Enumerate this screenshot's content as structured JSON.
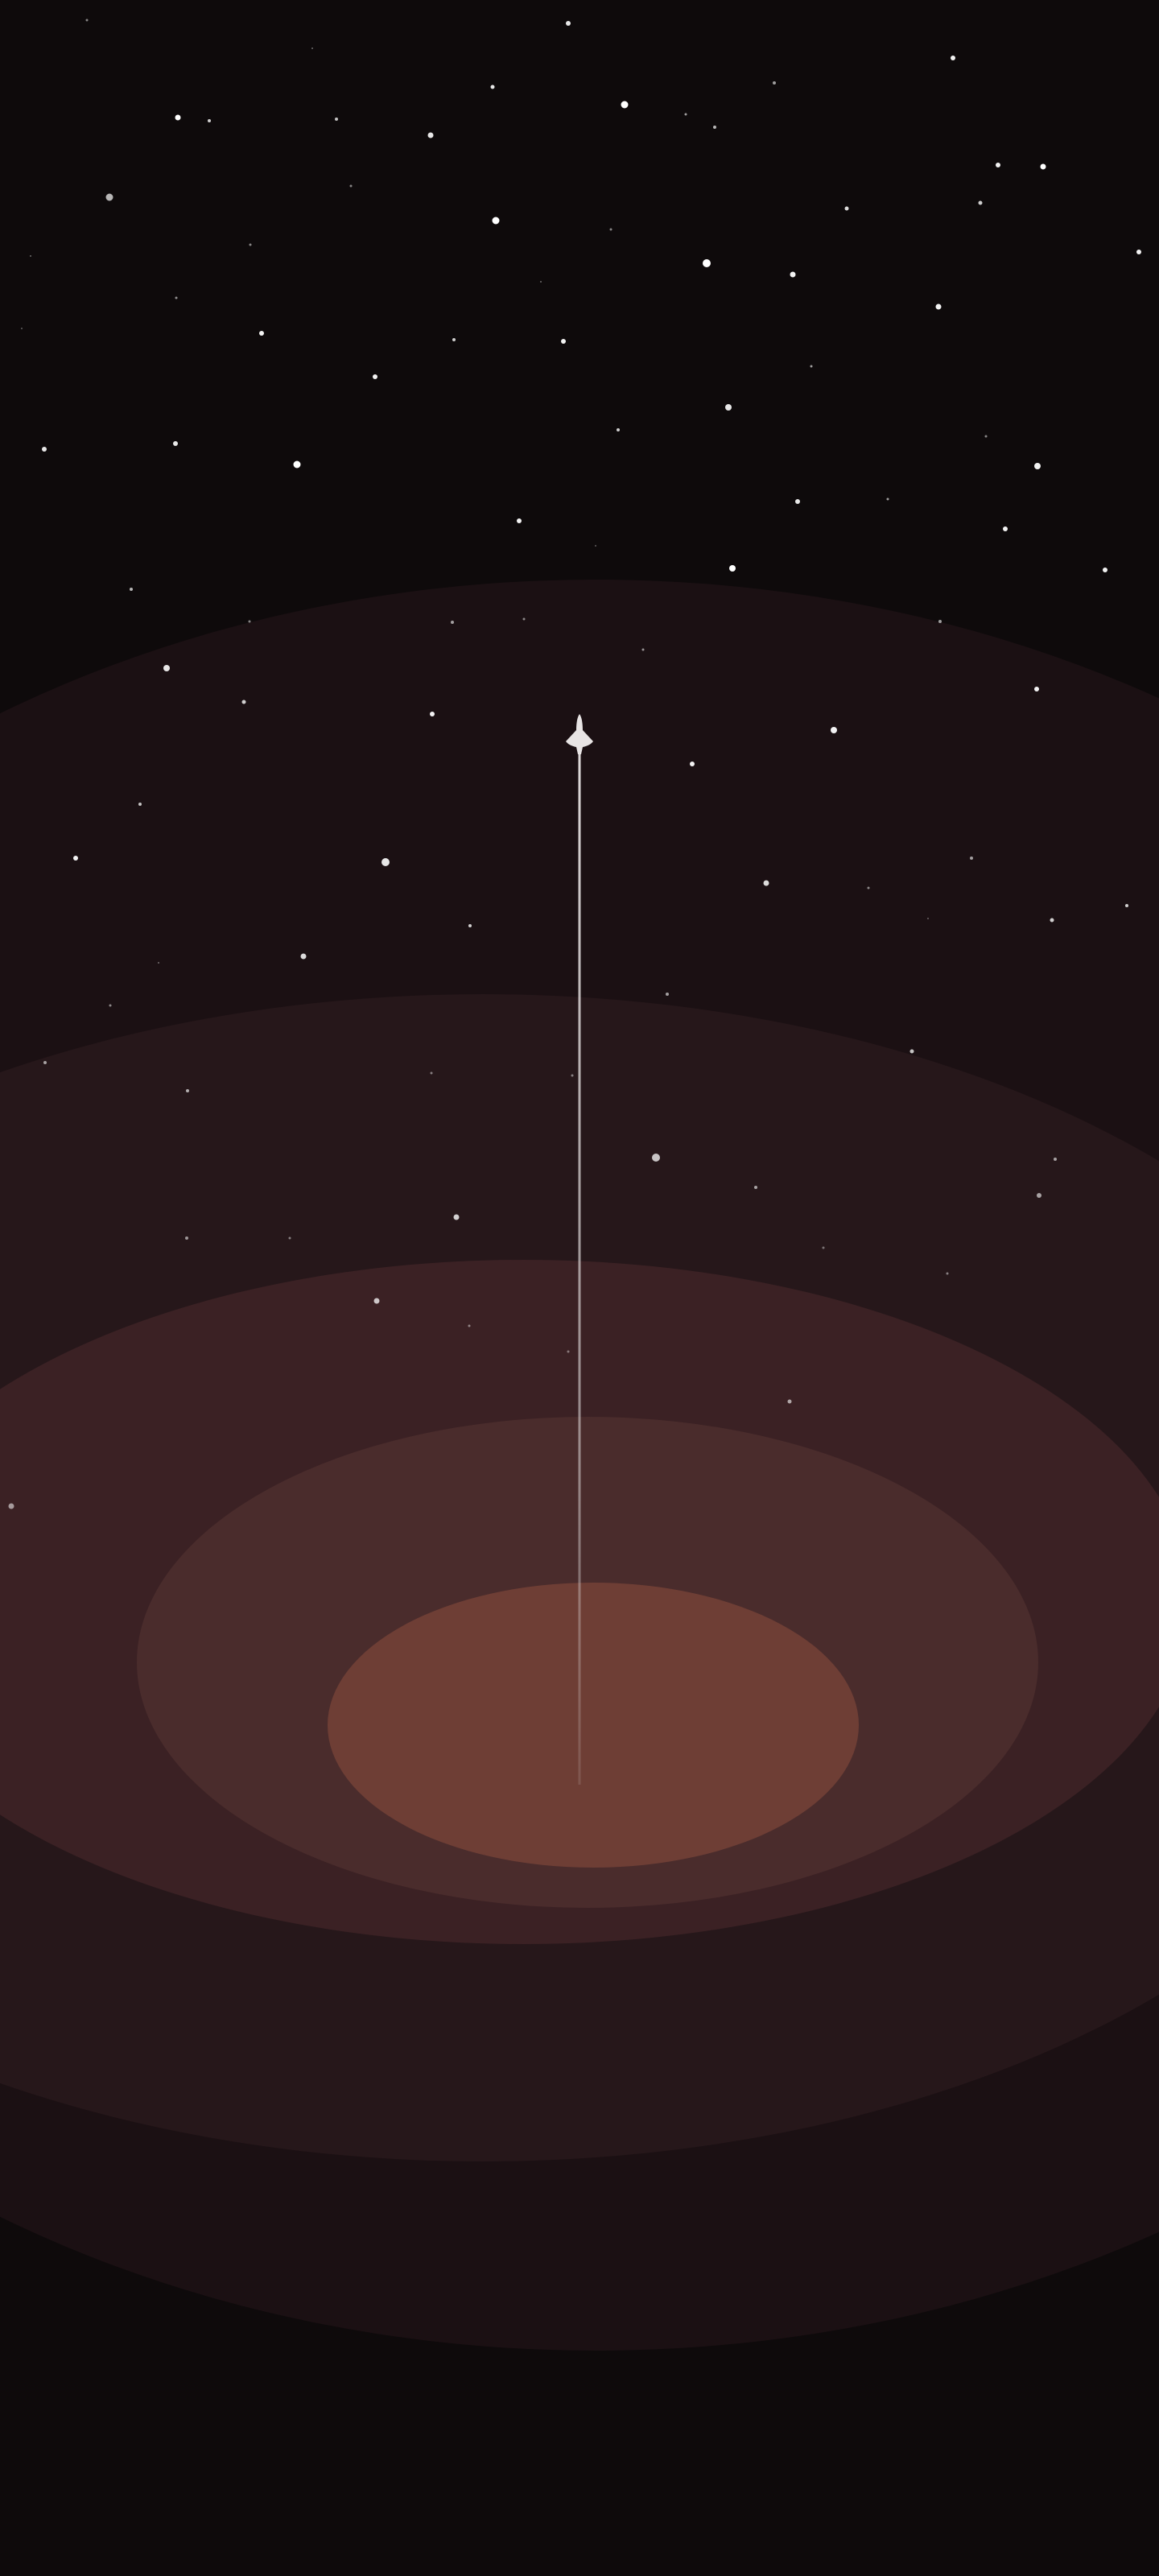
{
  "colors": {
    "background": "#0e0a0b",
    "ring_outer": "#1b1013",
    "ring_2": "#26171a",
    "ring_3": "#3b2124",
    "ring_4": "#4a2c2c",
    "core": "#6e3e35",
    "star": "#ffffff",
    "rocket": "#e8e4e4",
    "trail": "#d9d4d4"
  },
  "icons": {
    "rocket": "rocket-icon",
    "star": "star-icon"
  }
}
